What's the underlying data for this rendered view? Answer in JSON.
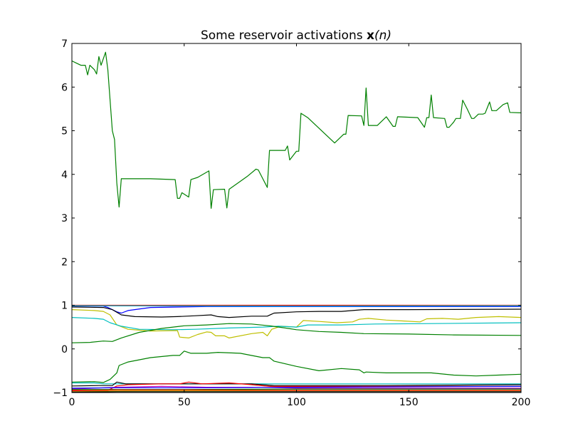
{
  "chart_data": {
    "type": "line",
    "title": "Some reservoir activations x(n)",
    "title_prefix": "Some reservoir activations ",
    "title_var": "x",
    "title_arg": "(n)",
    "xlabel": "",
    "ylabel": "",
    "xlim": [
      0,
      200
    ],
    "ylim": [
      -1,
      7
    ],
    "xticks": [
      0,
      50,
      100,
      150,
      200
    ],
    "xtick_labels": [
      "0",
      "50",
      "100",
      "150",
      "200"
    ],
    "yticks": [
      -1,
      0,
      1,
      2,
      3,
      4,
      5,
      6,
      7
    ],
    "ytick_labels": [
      "−1",
      "0",
      "1",
      "2",
      "3",
      "4",
      "5",
      "6",
      "7"
    ],
    "grid": false,
    "legend": "none",
    "series": [
      {
        "color": "#008000",
        "points": [
          [
            0,
            6.6
          ],
          [
            2,
            6.55
          ],
          [
            4,
            6.5
          ],
          [
            6,
            6.5
          ],
          [
            7,
            6.28
          ],
          [
            8,
            6.5
          ],
          [
            10,
            6.4
          ],
          [
            11,
            6.3
          ],
          [
            12,
            6.7
          ],
          [
            13,
            6.5
          ],
          [
            15,
            6.8
          ],
          [
            16,
            6.4
          ],
          [
            18,
            5.0
          ],
          [
            19,
            4.8
          ],
          [
            20,
            3.8
          ],
          [
            21,
            3.25
          ],
          [
            22,
            3.9
          ],
          [
            35,
            3.9
          ],
          [
            46,
            3.88
          ],
          [
            47,
            3.45
          ],
          [
            48,
            3.45
          ],
          [
            49,
            3.58
          ],
          [
            52,
            3.48
          ],
          [
            53,
            3.88
          ],
          [
            56,
            3.93
          ],
          [
            61,
            4.08
          ],
          [
            62,
            3.22
          ],
          [
            63,
            3.65
          ],
          [
            68,
            3.66
          ],
          [
            69,
            3.23
          ],
          [
            70,
            3.66
          ],
          [
            78,
            3.95
          ],
          [
            82,
            4.12
          ],
          [
            83,
            4.1
          ],
          [
            87,
            3.7
          ],
          [
            88,
            4.55
          ],
          [
            95,
            4.55
          ],
          [
            96,
            4.65
          ],
          [
            97,
            4.33
          ],
          [
            100,
            4.53
          ],
          [
            101,
            4.53
          ],
          [
            102,
            5.4
          ],
          [
            105,
            5.3
          ],
          [
            117,
            4.72
          ],
          [
            121,
            4.92
          ],
          [
            122,
            4.92
          ],
          [
            123,
            5.35
          ],
          [
            129,
            5.34
          ],
          [
            130,
            5.12
          ],
          [
            131,
            5.98
          ],
          [
            132,
            5.12
          ],
          [
            136,
            5.12
          ],
          [
            140,
            5.32
          ],
          [
            143,
            5.1
          ],
          [
            144,
            5.1
          ],
          [
            145,
            5.32
          ],
          [
            154,
            5.3
          ],
          [
            157,
            5.08
          ],
          [
            158,
            5.3
          ],
          [
            159,
            5.3
          ],
          [
            160,
            5.82
          ],
          [
            161,
            5.3
          ],
          [
            166,
            5.28
          ],
          [
            167,
            5.08
          ],
          [
            168,
            5.08
          ],
          [
            170,
            5.2
          ],
          [
            171,
            5.28
          ],
          [
            173,
            5.28
          ],
          [
            174,
            5.7
          ],
          [
            176,
            5.5
          ],
          [
            178,
            5.28
          ],
          [
            179,
            5.28
          ],
          [
            181,
            5.38
          ],
          [
            182,
            5.38
          ],
          [
            183,
            5.38
          ],
          [
            184,
            5.4
          ],
          [
            186,
            5.66
          ],
          [
            187,
            5.46
          ],
          [
            189,
            5.46
          ],
          [
            192,
            5.6
          ],
          [
            194,
            5.64
          ],
          [
            195,
            5.42
          ],
          [
            200,
            5.41
          ]
        ]
      },
      {
        "color": "#0000ff",
        "points": [
          [
            0,
            0.98
          ],
          [
            14,
            0.98
          ],
          [
            16,
            0.95
          ],
          [
            20,
            0.85
          ],
          [
            22,
            0.82
          ],
          [
            25,
            0.88
          ],
          [
            35,
            0.95
          ],
          [
            60,
            0.97
          ],
          [
            100,
            0.97
          ],
          [
            150,
            0.97
          ],
          [
            200,
            0.97
          ]
        ]
      },
      {
        "color": "#bf00bf",
        "points": [
          [
            0,
            0.99
          ],
          [
            50,
            0.98
          ],
          [
            100,
            0.99
          ],
          [
            150,
            0.99
          ],
          [
            200,
            0.99
          ]
        ]
      },
      {
        "color": "#ff0000",
        "points": [
          [
            0,
            1.0
          ],
          [
            200,
            1.0
          ]
        ]
      },
      {
        "color": "#00bfbf",
        "points": [
          [
            0,
            0.99
          ],
          [
            100,
            0.98
          ],
          [
            200,
            0.99
          ]
        ]
      },
      {
        "color": "#000000",
        "points": [
          [
            0,
            0.96
          ],
          [
            14,
            0.95
          ],
          [
            18,
            0.9
          ],
          [
            22,
            0.78
          ],
          [
            28,
            0.74
          ],
          [
            40,
            0.73
          ],
          [
            47,
            0.74
          ],
          [
            55,
            0.76
          ],
          [
            62,
            0.78
          ],
          [
            65,
            0.74
          ],
          [
            70,
            0.72
          ],
          [
            80,
            0.75
          ],
          [
            87,
            0.75
          ],
          [
            90,
            0.82
          ],
          [
            100,
            0.85
          ],
          [
            110,
            0.86
          ],
          [
            120,
            0.86
          ],
          [
            130,
            0.9
          ],
          [
            150,
            0.9
          ],
          [
            200,
            0.91
          ]
        ]
      },
      {
        "color": "#bfbf00",
        "points": [
          [
            0,
            0.9
          ],
          [
            10,
            0.88
          ],
          [
            14,
            0.86
          ],
          [
            17,
            0.78
          ],
          [
            20,
            0.55
          ],
          [
            25,
            0.45
          ],
          [
            35,
            0.41
          ],
          [
            47,
            0.42
          ],
          [
            48,
            0.27
          ],
          [
            52,
            0.25
          ],
          [
            56,
            0.33
          ],
          [
            60,
            0.39
          ],
          [
            62,
            0.38
          ],
          [
            64,
            0.3
          ],
          [
            68,
            0.3
          ],
          [
            70,
            0.25
          ],
          [
            80,
            0.35
          ],
          [
            85,
            0.38
          ],
          [
            87,
            0.3
          ],
          [
            89,
            0.45
          ],
          [
            93,
            0.52
          ],
          [
            100,
            0.5
          ],
          [
            101,
            0.55
          ],
          [
            103,
            0.65
          ],
          [
            110,
            0.63
          ],
          [
            118,
            0.6
          ],
          [
            125,
            0.62
          ],
          [
            128,
            0.68
          ],
          [
            132,
            0.7
          ],
          [
            140,
            0.66
          ],
          [
            148,
            0.64
          ],
          [
            155,
            0.62
          ],
          [
            158,
            0.69
          ],
          [
            165,
            0.7
          ],
          [
            172,
            0.68
          ],
          [
            180,
            0.72
          ],
          [
            190,
            0.74
          ],
          [
            200,
            0.72
          ]
        ]
      },
      {
        "color": "#00bfbf",
        "points": [
          [
            0,
            0.72
          ],
          [
            10,
            0.7
          ],
          [
            14,
            0.68
          ],
          [
            17,
            0.6
          ],
          [
            22,
            0.52
          ],
          [
            30,
            0.45
          ],
          [
            45,
            0.44
          ],
          [
            55,
            0.45
          ],
          [
            70,
            0.48
          ],
          [
            85,
            0.5
          ],
          [
            92,
            0.52
          ],
          [
            100,
            0.5
          ],
          [
            105,
            0.55
          ],
          [
            120,
            0.55
          ],
          [
            135,
            0.57
          ],
          [
            160,
            0.58
          ],
          [
            200,
            0.6
          ]
        ]
      },
      {
        "color": "#008000",
        "points": [
          [
            0,
            0.14
          ],
          [
            8,
            0.15
          ],
          [
            14,
            0.18
          ],
          [
            18,
            0.17
          ],
          [
            22,
            0.25
          ],
          [
            30,
            0.38
          ],
          [
            40,
            0.47
          ],
          [
            50,
            0.53
          ],
          [
            60,
            0.55
          ],
          [
            70,
            0.58
          ],
          [
            80,
            0.57
          ],
          [
            88,
            0.53
          ],
          [
            95,
            0.48
          ],
          [
            100,
            0.44
          ],
          [
            110,
            0.4
          ],
          [
            120,
            0.38
          ],
          [
            130,
            0.35
          ],
          [
            150,
            0.34
          ],
          [
            170,
            0.32
          ],
          [
            200,
            0.31
          ]
        ]
      },
      {
        "color": "#008000",
        "points": [
          [
            0,
            -0.76
          ],
          [
            10,
            -0.75
          ],
          [
            14,
            -0.77
          ],
          [
            17,
            -0.7
          ],
          [
            20,
            -0.55
          ],
          [
            21,
            -0.38
          ],
          [
            25,
            -0.3
          ],
          [
            35,
            -0.2
          ],
          [
            45,
            -0.15
          ],
          [
            48,
            -0.15
          ],
          [
            50,
            -0.05
          ],
          [
            53,
            -0.1
          ],
          [
            60,
            -0.1
          ],
          [
            65,
            -0.08
          ],
          [
            75,
            -0.1
          ],
          [
            85,
            -0.2
          ],
          [
            88,
            -0.2
          ],
          [
            90,
            -0.28
          ],
          [
            100,
            -0.4
          ],
          [
            110,
            -0.5
          ],
          [
            120,
            -0.45
          ],
          [
            128,
            -0.48
          ],
          [
            130,
            -0.55
          ],
          [
            131,
            -0.53
          ],
          [
            140,
            -0.55
          ],
          [
            150,
            -0.55
          ],
          [
            160,
            -0.55
          ],
          [
            170,
            -0.6
          ],
          [
            180,
            -0.62
          ],
          [
            190,
            -0.6
          ],
          [
            200,
            -0.58
          ]
        ]
      },
      {
        "color": "#00bfbf",
        "points": [
          [
            0,
            -0.78
          ],
          [
            10,
            -0.78
          ],
          [
            14,
            -0.8
          ],
          [
            20,
            -0.8
          ],
          [
            200,
            -0.8
          ]
        ]
      },
      {
        "color": "#000000",
        "points": [
          [
            0,
            -0.85
          ],
          [
            12,
            -0.84
          ],
          [
            18,
            -0.84
          ],
          [
            20,
            -0.76
          ],
          [
            24,
            -0.8
          ],
          [
            40,
            -0.8
          ],
          [
            60,
            -0.8
          ],
          [
            80,
            -0.8
          ],
          [
            90,
            -0.84
          ],
          [
            100,
            -0.84
          ],
          [
            120,
            -0.84
          ],
          [
            140,
            -0.84
          ],
          [
            200,
            -0.82
          ]
        ]
      },
      {
        "color": "#ff0000",
        "points": [
          [
            0,
            -0.95
          ],
          [
            16,
            -0.95
          ],
          [
            20,
            -0.85
          ],
          [
            25,
            -0.82
          ],
          [
            40,
            -0.8
          ],
          [
            48,
            -0.8
          ],
          [
            52,
            -0.76
          ],
          [
            58,
            -0.8
          ],
          [
            70,
            -0.78
          ],
          [
            80,
            -0.82
          ],
          [
            88,
            -0.86
          ],
          [
            100,
            -0.86
          ],
          [
            120,
            -0.86
          ],
          [
            150,
            -0.86
          ],
          [
            200,
            -0.86
          ]
        ]
      },
      {
        "color": "#bf00bf",
        "points": [
          [
            0,
            -0.92
          ],
          [
            20,
            -0.88
          ],
          [
            40,
            -0.86
          ],
          [
            60,
            -0.88
          ],
          [
            80,
            -0.88
          ],
          [
            100,
            -0.9
          ],
          [
            200,
            -0.9
          ]
        ]
      },
      {
        "color": "#0000ff",
        "points": [
          [
            0,
            -0.9
          ],
          [
            20,
            -0.89
          ],
          [
            60,
            -0.89
          ],
          [
            100,
            -0.88
          ],
          [
            140,
            -0.87
          ],
          [
            200,
            -0.86
          ]
        ]
      },
      {
        "color": "#bfbf00",
        "points": [
          [
            0,
            -0.97
          ],
          [
            30,
            -0.96
          ],
          [
            80,
            -0.96
          ],
          [
            200,
            -0.96
          ]
        ]
      },
      {
        "color": "#008000",
        "points": [
          [
            0,
            -0.93
          ],
          [
            50,
            -0.93
          ],
          [
            100,
            -0.92
          ],
          [
            200,
            -0.92
          ]
        ]
      },
      {
        "color": "#000000",
        "points": [
          [
            0,
            -0.99
          ],
          [
            20,
            -0.98
          ],
          [
            60,
            -0.98
          ],
          [
            100,
            -0.98
          ],
          [
            200,
            -0.98
          ]
        ]
      },
      {
        "color": "#ff0000",
        "points": [
          [
            0,
            -0.96
          ],
          [
            20,
            -0.94
          ],
          [
            50,
            -0.94
          ],
          [
            100,
            -0.95
          ],
          [
            200,
            -0.95
          ]
        ]
      }
    ]
  }
}
